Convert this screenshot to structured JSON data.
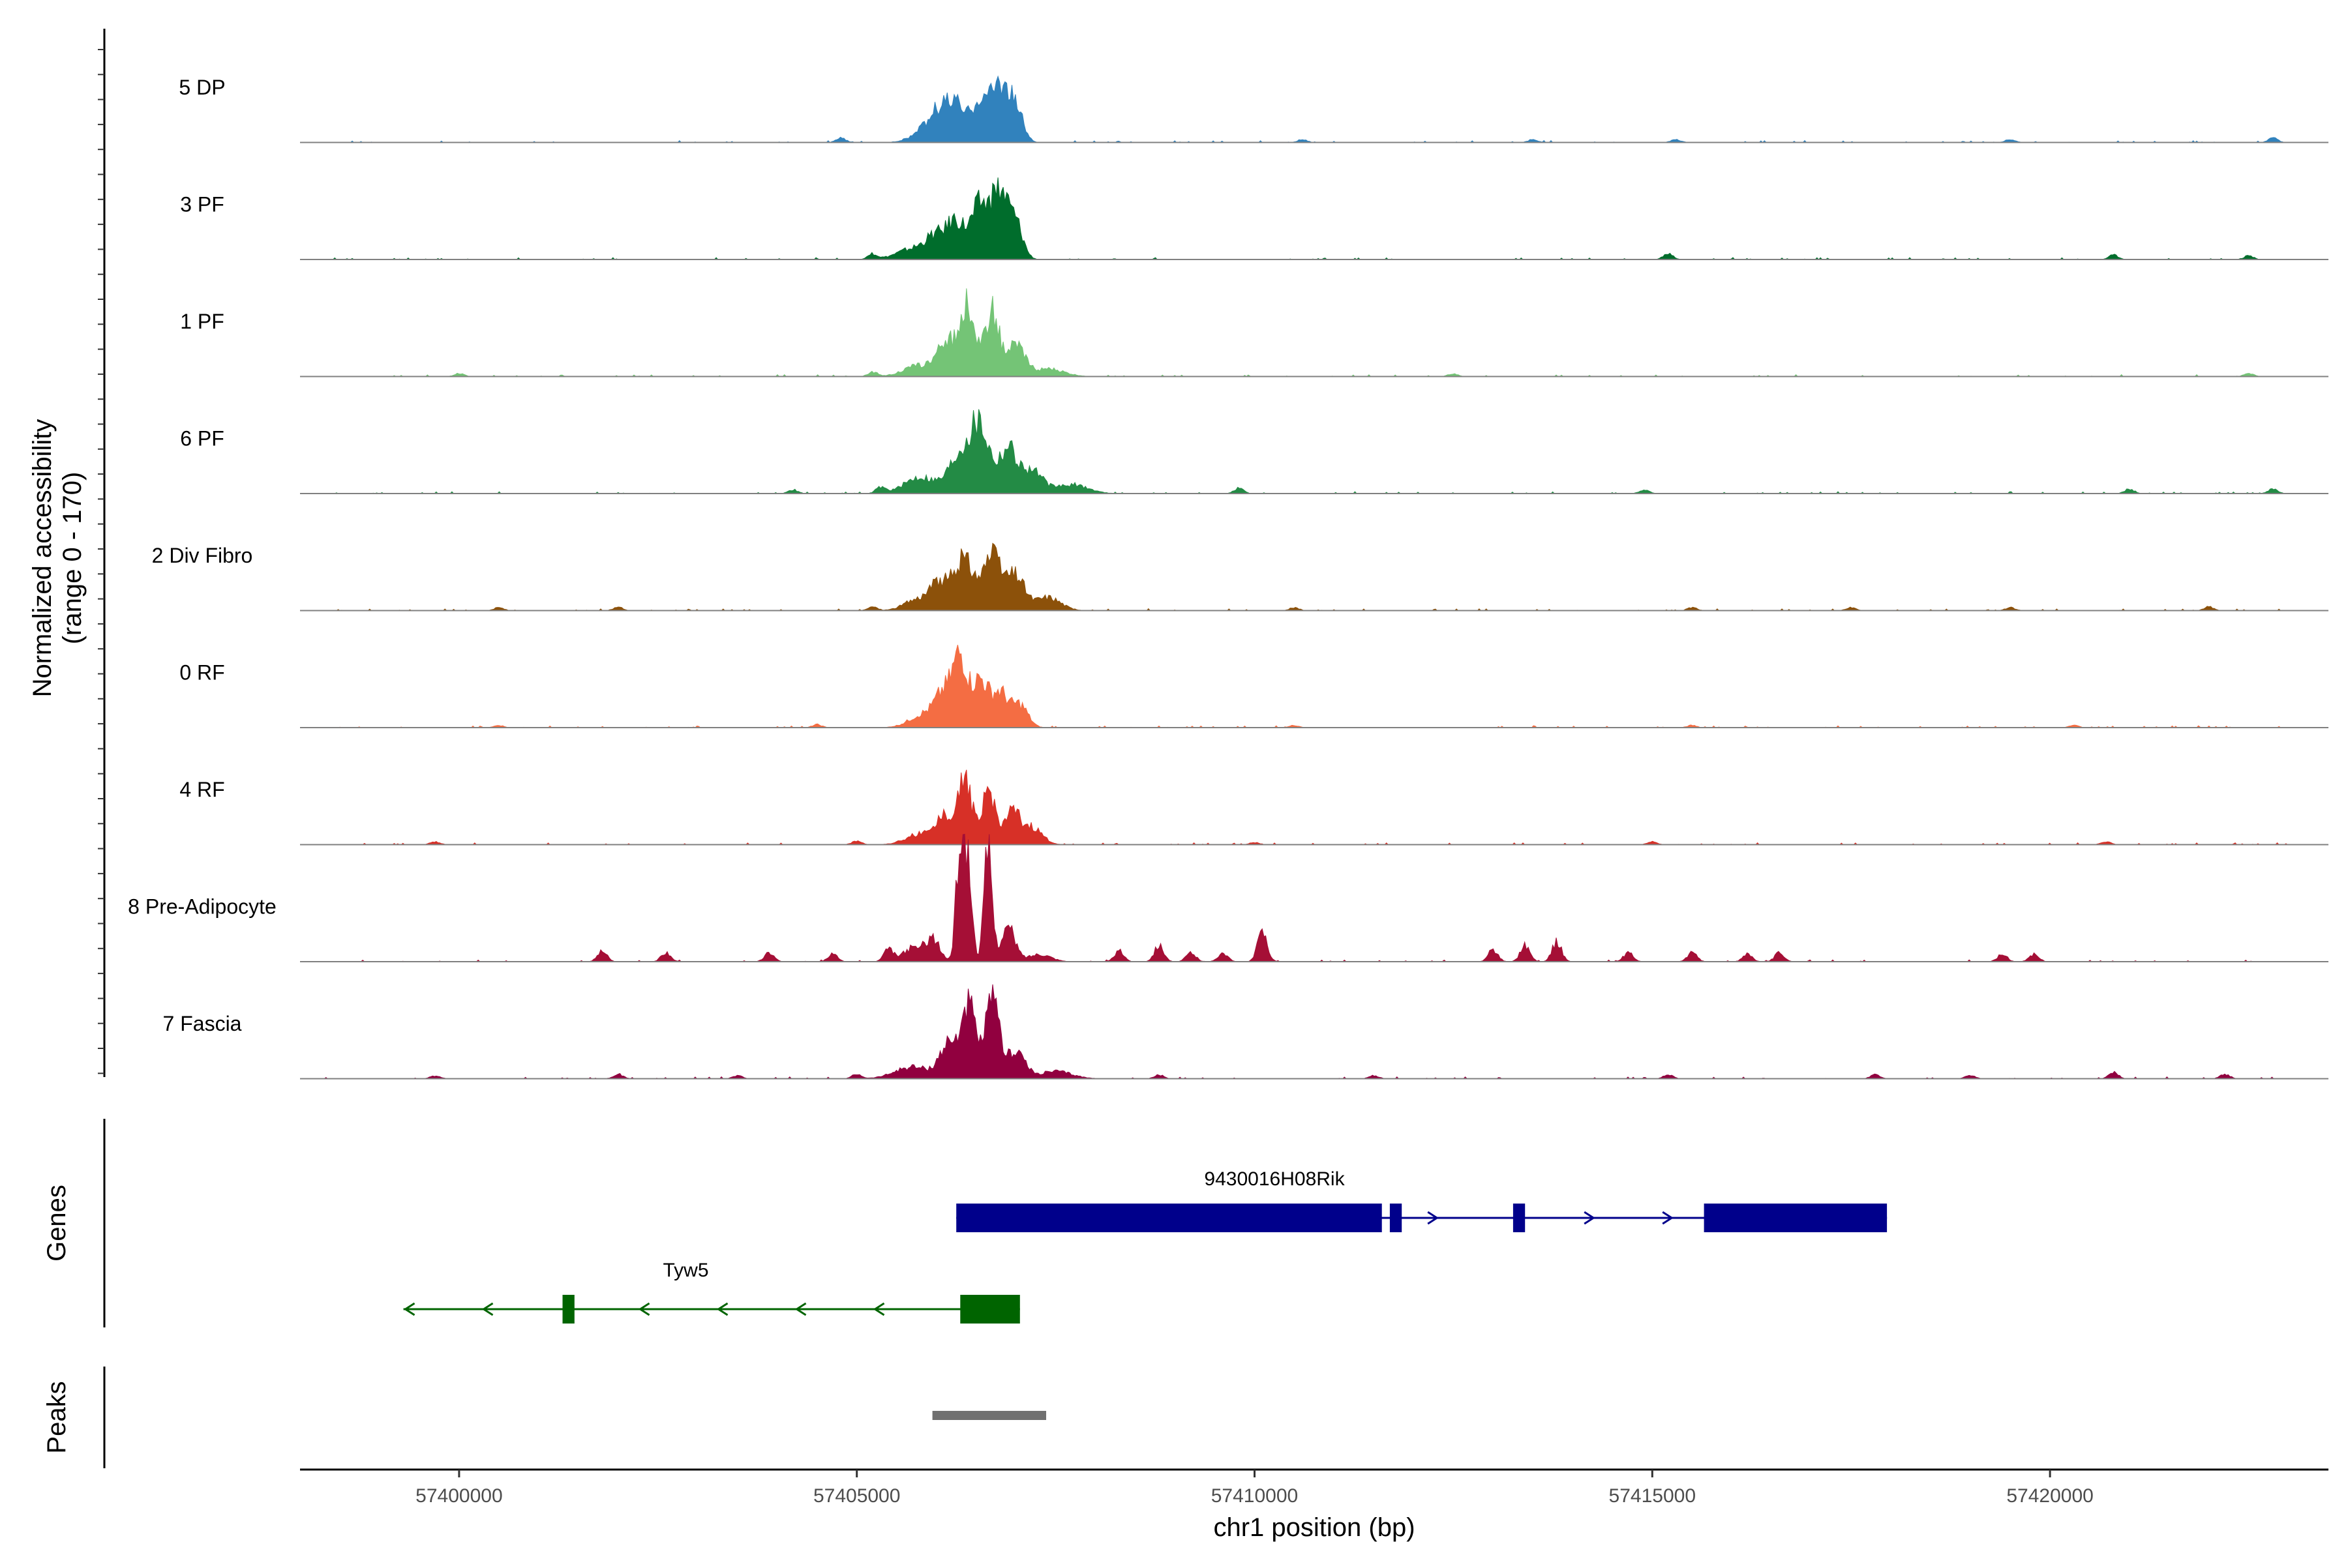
{
  "chart_data": {
    "type": "area",
    "ylabel": "Normalized accessibility",
    "ylabel_range": "(range 0 - 170)",
    "ylim": [
      0,
      170
    ],
    "xlabel": "chr1 position (bp)",
    "xlim": [
      57398000,
      57423500
    ],
    "x_ticks": [
      57400000,
      57405000,
      57410000,
      57415000,
      57420000
    ],
    "x_tick_labels": [
      "57400000",
      "57405000",
      "57410000",
      "57415000",
      "57420000"
    ],
    "tracks": [
      {
        "name": "5 DP",
        "color": "#3182BD",
        "peaks": [
          [
            57406250,
            42,
            110
          ],
          [
            57406550,
            58,
            110
          ],
          [
            57406800,
            75,
            100
          ],
          [
            57407000,
            45,
            90
          ],
          [
            57406050,
            30,
            120
          ],
          [
            57405900,
            18,
            180
          ]
        ],
        "noise": [
          [
            57404800,
            6
          ],
          [
            57410600,
            4
          ],
          [
            57413500,
            4
          ],
          [
            57415300,
            4
          ],
          [
            57419500,
            4
          ],
          [
            57422800,
            6
          ]
        ]
      },
      {
        "name": "3 PF",
        "color": "#006D2C",
        "peaks": [
          [
            57406250,
            48,
            110
          ],
          [
            57406550,
            72,
            110
          ],
          [
            57406800,
            85,
            100
          ],
          [
            57407000,
            45,
            90
          ],
          [
            57406000,
            28,
            130
          ],
          [
            57405700,
            14,
            200
          ]
        ],
        "noise": [
          [
            57405200,
            7
          ],
          [
            57415200,
            8
          ],
          [
            57420800,
            6
          ],
          [
            57422500,
            5
          ]
        ]
      },
      {
        "name": "1 PF",
        "color": "#74C476",
        "peaks": [
          [
            57406150,
            45,
            120
          ],
          [
            57406400,
            92,
            90
          ],
          [
            57406700,
            85,
            90
          ],
          [
            57407000,
            40,
            110
          ],
          [
            57405800,
            15,
            200
          ],
          [
            57407400,
            10,
            200
          ]
        ],
        "noise": [
          [
            57400000,
            4
          ],
          [
            57405200,
            6
          ],
          [
            57412500,
            4
          ],
          [
            57422500,
            4
          ]
        ]
      },
      {
        "name": "6 PF",
        "color": "#238B45",
        "peaks": [
          [
            57406300,
            50,
            140
          ],
          [
            57406550,
            85,
            120
          ],
          [
            57406900,
            60,
            110
          ],
          [
            57407200,
            30,
            130
          ],
          [
            57405800,
            22,
            200
          ],
          [
            57407700,
            12,
            200
          ]
        ],
        "noise": [
          [
            57404200,
            5
          ],
          [
            57405300,
            8
          ],
          [
            57409800,
            7
          ],
          [
            57414900,
            5
          ],
          [
            57421000,
            6
          ],
          [
            57422800,
            6
          ]
        ]
      },
      {
        "name": "2 Div Fibro",
        "color": "#8C510A",
        "peaks": [
          [
            57406050,
            35,
            130
          ],
          [
            57406350,
            65,
            120
          ],
          [
            57406700,
            70,
            120
          ],
          [
            57407000,
            45,
            110
          ],
          [
            57407400,
            18,
            160
          ],
          [
            57405750,
            14,
            160
          ]
        ],
        "noise": [
          [
            57400500,
            4
          ],
          [
            57402000,
            5
          ],
          [
            57405200,
            5
          ],
          [
            57410500,
            4
          ],
          [
            57415500,
            4
          ],
          [
            57417500,
            4
          ],
          [
            57419500,
            4
          ],
          [
            57422000,
            5
          ]
        ]
      },
      {
        "name": "0 RF",
        "color": "#F46D43",
        "peaks": [
          [
            57406100,
            40,
            110
          ],
          [
            57406300,
            88,
            90
          ],
          [
            57406550,
            62,
            100
          ],
          [
            57406800,
            45,
            100
          ],
          [
            57407050,
            30,
            100
          ],
          [
            57405850,
            18,
            180
          ]
        ],
        "noise": [
          [
            57400500,
            3
          ],
          [
            57404500,
            4
          ],
          [
            57410500,
            3
          ],
          [
            57415500,
            3
          ],
          [
            57420300,
            3
          ]
        ]
      },
      {
        "name": "4 RF",
        "color": "#D73027",
        "peaks": [
          [
            57406100,
            35,
            110
          ],
          [
            57406350,
            85,
            90
          ],
          [
            57406650,
            70,
            90
          ],
          [
            57406950,
            40,
            100
          ],
          [
            57407200,
            22,
            130
          ],
          [
            57405800,
            14,
            180
          ]
        ],
        "noise": [
          [
            57399700,
            4
          ],
          [
            57405000,
            5
          ],
          [
            57410000,
            3
          ],
          [
            57415000,
            4
          ],
          [
            57420700,
            4
          ]
        ]
      },
      {
        "name": "8 Pre-Adipocyte",
        "color": "#A50F36",
        "peaks": [
          [
            57406300,
            155,
            50
          ],
          [
            57406400,
            120,
            50
          ],
          [
            57406650,
            150,
            50
          ],
          [
            57406900,
            45,
            90
          ],
          [
            57405950,
            30,
            90
          ],
          [
            57405700,
            18,
            120
          ],
          [
            57407300,
            10,
            140
          ]
        ],
        "noise": [
          [
            57401800,
            14
          ],
          [
            57402600,
            12
          ],
          [
            57403900,
            12
          ],
          [
            57404700,
            10
          ],
          [
            57405400,
            16
          ],
          [
            57408300,
            14
          ],
          [
            57408800,
            22
          ],
          [
            57409200,
            12
          ],
          [
            57409600,
            12
          ],
          [
            57410100,
            40
          ],
          [
            57413000,
            16
          ],
          [
            57413400,
            22
          ],
          [
            57413800,
            26
          ],
          [
            57414700,
            12
          ],
          [
            57415500,
            12
          ],
          [
            57416200,
            10
          ],
          [
            57416600,
            12
          ],
          [
            57419400,
            10
          ],
          [
            57419800,
            10
          ]
        ]
      },
      {
        "name": "7 Fascia",
        "color": "#91003F",
        "peaks": [
          [
            57406150,
            45,
            110
          ],
          [
            57406400,
            98,
            90
          ],
          [
            57406700,
            100,
            90
          ],
          [
            57407000,
            38,
            110
          ],
          [
            57405700,
            16,
            220
          ],
          [
            57407500,
            10,
            200
          ]
        ],
        "noise": [
          [
            57399700,
            4
          ],
          [
            57402000,
            6
          ],
          [
            57403500,
            4
          ],
          [
            57405000,
            6
          ],
          [
            57408800,
            5
          ],
          [
            57411500,
            4
          ],
          [
            57415200,
            5
          ],
          [
            57417800,
            5
          ],
          [
            57419000,
            5
          ],
          [
            57420800,
            8
          ],
          [
            57422200,
            6
          ]
        ]
      }
    ],
    "genes_label": "Genes",
    "genes": [
      {
        "name": "9430016H08Rik",
        "strand": "+",
        "color": "#00008B",
        "start": 57406250,
        "end": 57417950,
        "exons": [
          [
            57406250,
            57411600
          ],
          [
            57411700,
            57411850
          ],
          [
            57413250,
            57413400
          ],
          [
            57415650,
            57417950
          ]
        ]
      },
      {
        "name": "Tyw5",
        "strand": "-",
        "color": "#006400",
        "start": 57399300,
        "end": 57407050,
        "exons": [
          [
            57401300,
            57401450
          ],
          [
            57406300,
            57407050
          ]
        ]
      }
    ],
    "peaks_label": "Peaks",
    "peak_regions": [
      [
        57405950,
        57407380
      ]
    ],
    "peak_color": "#707070"
  }
}
